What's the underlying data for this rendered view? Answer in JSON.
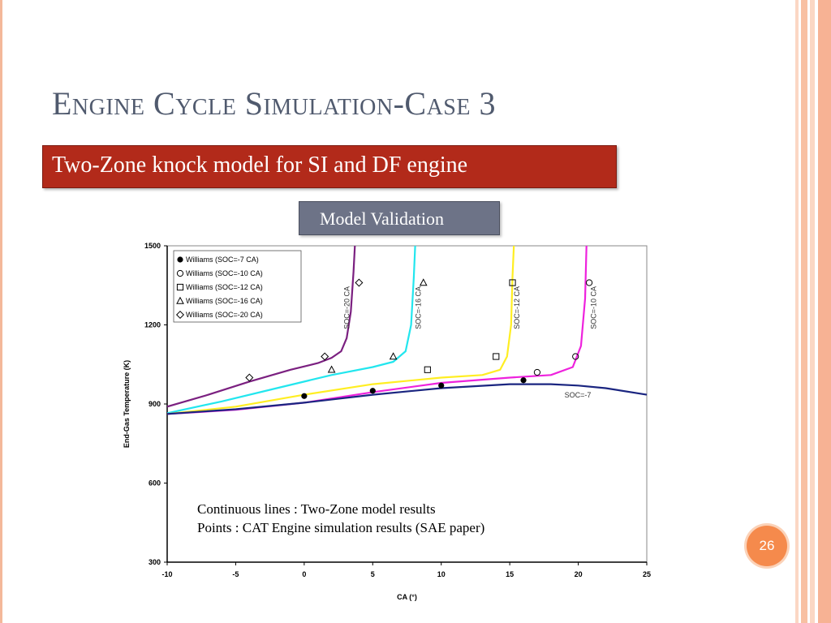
{
  "title": "Engine Cycle Simulation-Case 3",
  "subtitle": "Two-Zone knock model for SI and DF engine",
  "section_label": "Model Validation",
  "page_number": "26",
  "notes": {
    "line1": "Continuous lines : Two-Zone model results",
    "line2": "Points : CAT Engine simulation results (SAE paper)"
  },
  "colors": {
    "title": "#505a6e",
    "subtitle_bg": "#b22a1a",
    "section_bg": "#6d7387",
    "page_badge": "#f58a4c",
    "soc_20": "#7b2080",
    "soc_16": "#22e6ee",
    "soc_12": "#ffee22",
    "soc_10": "#ee22dd",
    "soc_7": "#1a2580"
  },
  "chart_data": {
    "type": "line",
    "xlabel": "CA (°)",
    "ylabel": "End-Gas Temperature (K)",
    "xlim": [
      -10,
      25
    ],
    "ylim": [
      300,
      1500
    ],
    "xticks": [
      -10,
      -5,
      0,
      5,
      10,
      15,
      20,
      25
    ],
    "yticks": [
      300,
      600,
      900,
      1200,
      1500
    ],
    "legend_position": "top-left",
    "legend": [
      {
        "marker": "filled-circle",
        "label": "Williams (SOC=-7 CA)"
      },
      {
        "marker": "circle",
        "label": "Williams (SOC=-10 CA)"
      },
      {
        "marker": "square",
        "label": "Williams (SOC=-12 CA)"
      },
      {
        "marker": "triangle",
        "label": "Williams (SOC=-16 CA)"
      },
      {
        "marker": "diamond",
        "label": "Williams (SOC=-20 CA)"
      }
    ],
    "series": [
      {
        "name": "SOC=-20 CA",
        "color": "#7b2080",
        "x": [
          -10,
          -7,
          -4,
          -1,
          1,
          2,
          2.7,
          3.1,
          3.4,
          3.6,
          3.7
        ],
        "y": [
          890,
          935,
          985,
          1030,
          1055,
          1075,
          1100,
          1150,
          1250,
          1400,
          1500
        ]
      },
      {
        "name": "SOC=-16 CA",
        "color": "#22e6ee",
        "x": [
          -10,
          -6,
          -2,
          2,
          5,
          6.5,
          7.4,
          7.8,
          8.0,
          8.1
        ],
        "y": [
          865,
          910,
          960,
          1010,
          1040,
          1060,
          1100,
          1200,
          1380,
          1500
        ]
      },
      {
        "name": "SOC=-12 CA",
        "color": "#ffee22",
        "x": [
          -10,
          -5,
          0,
          5,
          10,
          13,
          14.3,
          14.8,
          15.1,
          15.2,
          15.3
        ],
        "y": [
          862,
          890,
          935,
          975,
          1000,
          1010,
          1030,
          1080,
          1200,
          1380,
          1500
        ]
      },
      {
        "name": "SOC=-10 CA",
        "color": "#ee22dd",
        "x": [
          -10,
          -5,
          0,
          5,
          10,
          15,
          18,
          19.6,
          20.2,
          20.5,
          20.6
        ],
        "y": [
          862,
          878,
          905,
          945,
          980,
          1000,
          1010,
          1040,
          1120,
          1300,
          1500
        ]
      },
      {
        "name": "SOC=-7",
        "color": "#1a2580",
        "x": [
          -10,
          -5,
          0,
          5,
          10,
          15,
          18,
          20,
          22,
          25
        ],
        "y": [
          862,
          880,
          905,
          935,
          960,
          975,
          975,
          970,
          960,
          935
        ]
      }
    ],
    "points": [
      {
        "name": "Williams (SOC=-7 CA)",
        "marker": "filled-circle",
        "x": [
          0,
          5,
          10,
          16
        ],
        "y": [
          930,
          950,
          970,
          990
        ]
      },
      {
        "name": "Williams (SOC=-10 CA)",
        "marker": "circle",
        "x": [
          17,
          19.8,
          20.8
        ],
        "y": [
          1020,
          1080,
          1360
        ]
      },
      {
        "name": "Williams (SOC=-12 CA)",
        "marker": "square",
        "x": [
          9,
          14,
          15.2
        ],
        "y": [
          1030,
          1080,
          1360
        ]
      },
      {
        "name": "Williams (SOC=-16 CA)",
        "marker": "triangle",
        "x": [
          2,
          6.5,
          8.7
        ],
        "y": [
          1030,
          1080,
          1360
        ]
      },
      {
        "name": "Williams (SOC=-20 CA)",
        "marker": "diamond",
        "x": [
          -4,
          1.5,
          4
        ],
        "y": [
          1000,
          1080,
          1360
        ]
      }
    ],
    "curve_labels": [
      {
        "text": "SOC=-20 CA",
        "x": 3.3,
        "y": 1265
      },
      {
        "text": "SOC=-16 CA",
        "x": 8.5,
        "y": 1265
      },
      {
        "text": "SOC=-12 CA",
        "x": 15.7,
        "y": 1265
      },
      {
        "text": "SOC=-10 CA",
        "x": 21.3,
        "y": 1265
      },
      {
        "text": "SOC=-7",
        "x": 19,
        "y": 925
      }
    ]
  }
}
